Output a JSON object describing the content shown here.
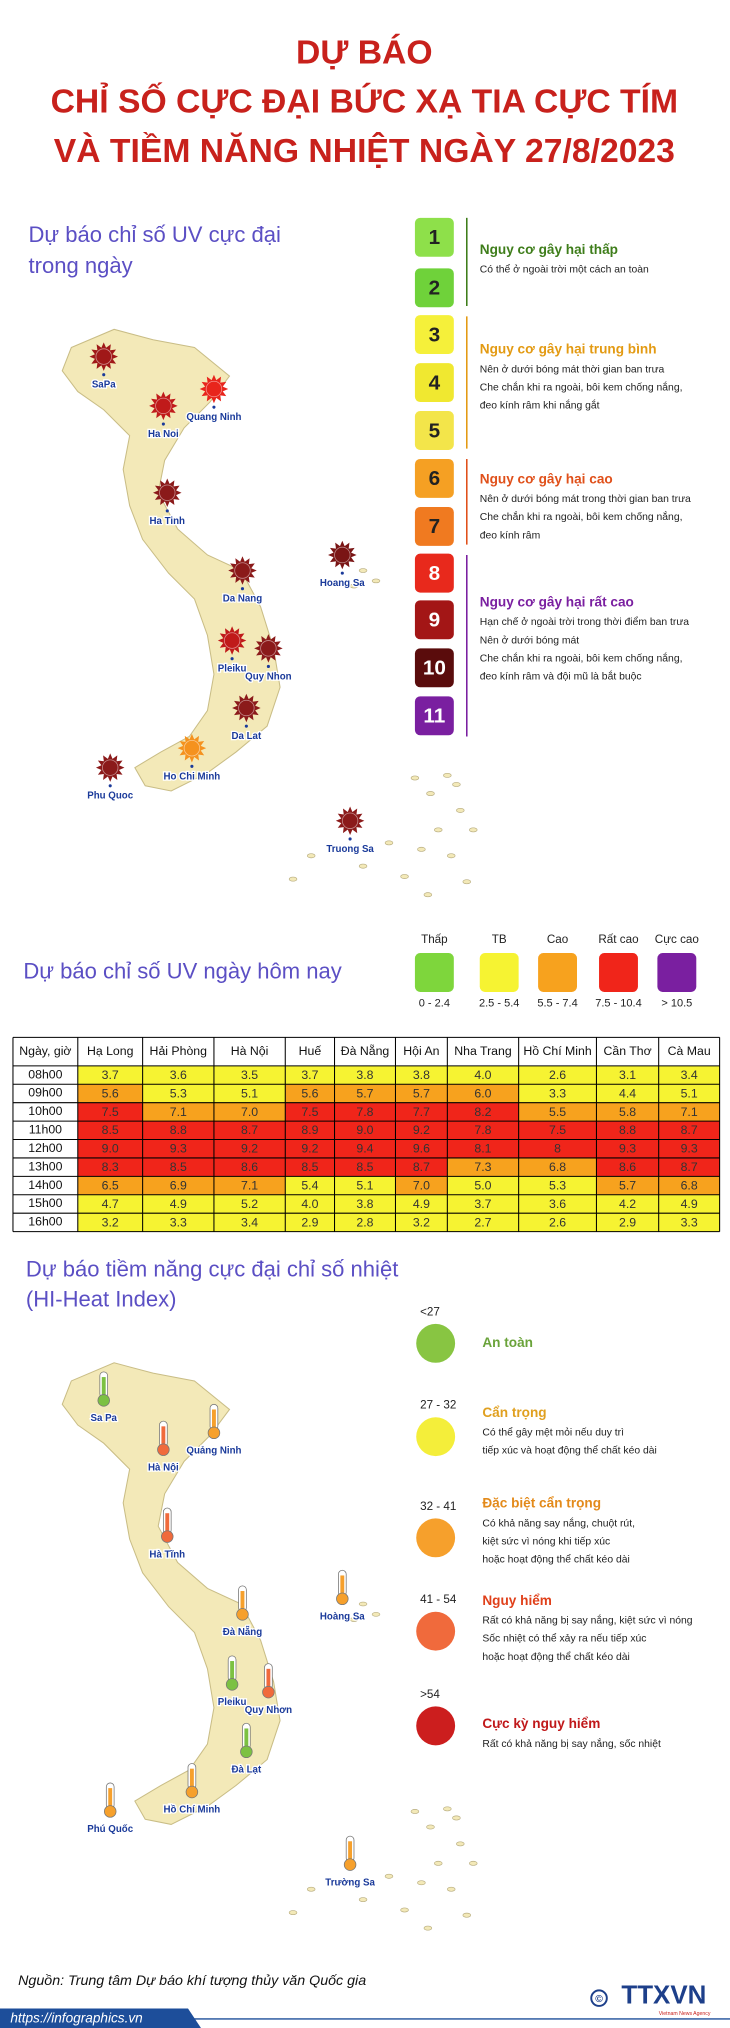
{
  "title_lines": [
    "DỰ BÁO",
    "CHỈ SỐ CỰC ĐẠI BỨC XẠ TIA CỰC TÍM",
    "VÀ TIỀM NĂNG NHIỆT NGÀY 27/8/2023"
  ],
  "uv_max": {
    "heading_lines": [
      "Dự báo chỉ số UV cực đại",
      "trong ngày"
    ],
    "cities": [
      "SaPa",
      "Ha Noi",
      "Quang Ninh",
      "Ha Tinh",
      "Da Nang",
      "Hoang Sa",
      "Pleiku",
      "Quy Nhon",
      "Da Lat",
      "Ho Chi Minh",
      "Phu Quoc",
      "Truong Sa"
    ],
    "levels": [
      {
        "value": 1,
        "color": "#8ee04a"
      },
      {
        "value": 2,
        "color": "#6fd23a"
      },
      {
        "value": 3,
        "color": "#f5f03a"
      },
      {
        "value": 4,
        "color": "#f0e830"
      },
      {
        "value": 5,
        "color": "#f3e54a"
      },
      {
        "value": 6,
        "color": "#f5a023"
      },
      {
        "value": 7,
        "color": "#f07a20"
      },
      {
        "value": 8,
        "color": "#e8291c"
      },
      {
        "value": 9,
        "color": "#a31616"
      },
      {
        "value": 10,
        "color": "#5a0c0c"
      },
      {
        "value": 11,
        "color": "#7a1fa0"
      }
    ],
    "groups": [
      {
        "title": "Nguy cơ gây hại thấp",
        "color": "#3e7d1a",
        "lines": [
          "Có thể ở ngoài trời một cách an toàn"
        ]
      },
      {
        "title": "Nguy cơ gây hại trung bình",
        "color": "#e39a12",
        "lines": [
          "Nên ở dưới bóng mát thời gian ban trưa",
          "Che chắn khi ra ngoài, bôi kem chống nắng,",
          "đeo kính râm khi nắng gắt"
        ]
      },
      {
        "title": "Nguy cơ gây hại cao",
        "color": "#e0501a",
        "lines": [
          "Nên ở dưới bóng mát trong thời gian ban trưa",
          "Che chắn khi ra ngoài, bôi kem chống nắng,",
          "đeo kính râm"
        ]
      },
      {
        "title": "Nguy cơ gây hại rất cao",
        "color": "#7a1fa0",
        "lines": [
          "Hạn chế ở ngoài trời trong thời điểm ban trưa",
          "Nên ở dưới bóng mát",
          "Che chắn khi ra ngoài, bôi kem chống nắng,",
          "đeo kính râm và đội mũ là bắt buộc"
        ]
      }
    ]
  },
  "uv_today": {
    "heading": "Dự báo chỉ số UV ngày hôm nay",
    "legend": [
      {
        "label": "Thấp",
        "range": "0 - 2.4",
        "color": "#7ed63c"
      },
      {
        "label": "TB",
        "range": "2.5 - 5.4",
        "color": "#f6f332"
      },
      {
        "label": "Cao",
        "range": "5.5 - 7.4",
        "color": "#f7a21e"
      },
      {
        "label": "Rất cao",
        "range": "7.5 - 10.4",
        "color": "#f0251a"
      },
      {
        "label": "Cực cao",
        "range": "> 10.5",
        "color": "#7a1fa0"
      }
    ],
    "table": {
      "header": [
        "Ngày, giờ",
        "Hạ Long",
        "Hải Phòng",
        "Hà Nội",
        "Huế",
        "Đà Nẵng",
        "Hội An",
        "Nha Trang",
        "Hồ Chí Minh",
        "Cần Thơ",
        "Cà Mau"
      ],
      "rows": [
        {
          "time": "08h00",
          "values": [
            "3.7",
            "3.6",
            "3.5",
            "3.7",
            "3.8",
            "3.8",
            "4.0",
            "2.6",
            "3.1",
            "3.4"
          ]
        },
        {
          "time": "09h00",
          "values": [
            "5.6",
            "5.3",
            "5.1",
            "5.6",
            "5.7",
            "5.7",
            "6.0",
            "3.3",
            "4.4",
            "5.1"
          ]
        },
        {
          "time": "10h00",
          "values": [
            "7.5",
            "7.1",
            "7.0",
            "7.5",
            "7.8",
            "7.7",
            "8.2",
            "5.5",
            "5.8",
            "7.1"
          ]
        },
        {
          "time": "11h00",
          "values": [
            "8.5",
            "8.8",
            "8.7",
            "8.9",
            "9.0",
            "9.2",
            "7.8",
            "7.5",
            "8.8",
            "8.7"
          ]
        },
        {
          "time": "12h00",
          "values": [
            "9.0",
            "9.3",
            "9.2",
            "9.2",
            "9.4",
            "9.6",
            "8.1",
            "8",
            "9.3",
            "9.3"
          ]
        },
        {
          "time": "13h00",
          "values": [
            "8.3",
            "8.5",
            "8.6",
            "8.5",
            "8.5",
            "8.7",
            "7.3",
            "6.8",
            "8.6",
            "8.7"
          ]
        },
        {
          "time": "14h00",
          "values": [
            "6.5",
            "6.9",
            "7.1",
            "5.4",
            "5.1",
            "7.0",
            "5.0",
            "5.3",
            "5.7",
            "6.8"
          ]
        },
        {
          "time": "15h00",
          "values": [
            "4.7",
            "4.9",
            "5.2",
            "4.0",
            "3.8",
            "4.9",
            "3.7",
            "3.6",
            "4.2",
            "4.9"
          ]
        },
        {
          "time": "16h00",
          "values": [
            "3.2",
            "3.3",
            "3.4",
            "2.9",
            "2.8",
            "3.2",
            "2.7",
            "2.6",
            "2.9",
            "3.3"
          ]
        }
      ]
    }
  },
  "heat": {
    "heading_lines": [
      "Dự báo tiềm năng cực đại chỉ số nhiệt",
      "(HI-Heat Index)"
    ],
    "cities": [
      "Sa Pa",
      "Hà Nội",
      "Quảng Ninh",
      "Hà Tĩnh",
      "Đà Nẵng",
      "Hoàng Sa",
      "Pleiku",
      "Quy Nhơn",
      "Đà Lạt",
      "Hồ Chí Minh",
      "Phú Quốc",
      "Trường Sa"
    ],
    "legend": [
      {
        "range": "<27",
        "title": "An toàn",
        "color": "#88c542",
        "title_color": "#6aa33a",
        "lines": []
      },
      {
        "range": "27 - 32",
        "title": "Cẩn trọng",
        "color": "#f4ee3a",
        "title_color": "#e0a020",
        "lines": [
          "Có thể gây mệt mỏi nếu duy trì",
          "tiếp xúc và hoạt động thể chất kéo dài"
        ]
      },
      {
        "range": "32 - 41",
        "title": "Đặc biệt cẩn trọng",
        "color": "#f6a02c",
        "title_color": "#e38a1a",
        "lines": [
          "Có khả năng say nắng, chuột rút,",
          "kiệt sức vì nóng khi tiếp xúc",
          "hoặc hoạt động thể chất kéo dài"
        ]
      },
      {
        "range": "41 - 54",
        "title": "Nguy hiểm",
        "color": "#f06a3c",
        "title_color": "#e0401a",
        "lines": [
          "Rất có khả năng bị say nắng, kiệt sức vì nóng",
          "Sốc nhiệt có thể xảy ra nếu tiếp xúc",
          "hoặc hoạt động thể chất kéo dài"
        ]
      },
      {
        "range": ">54",
        "title": "Cực kỳ nguy hiểm",
        "color": "#cc1e1e",
        "title_color": "#c0181a",
        "lines": [
          "Rất có khả năng bị say nắng, sốc nhiệt"
        ]
      }
    ]
  },
  "source": "Nguồn: Trung tâm Dự báo khí tượng thủy văn Quốc gia",
  "logo": "TTXVN",
  "logo_sub": "Vietnam News Agency",
  "url": "https://infographics.vn"
}
